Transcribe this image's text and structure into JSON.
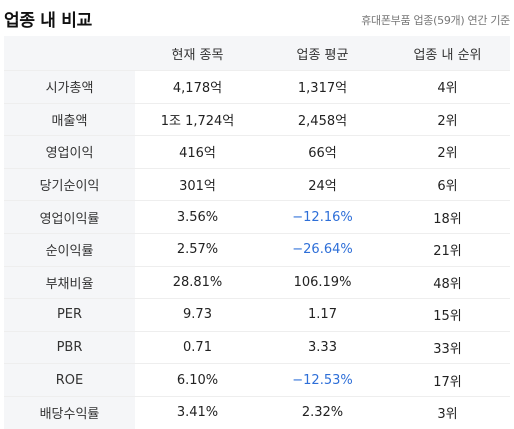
{
  "header": {
    "title": "업종 내 비교",
    "subtitle": "휴대폰부품 업종(59개) 연간 기준"
  },
  "table": {
    "columns": [
      "",
      "현재 종목",
      "업종 평균",
      "업종 내 순위"
    ],
    "rows": [
      {
        "label": "시가총액",
        "current": "4,178억",
        "avg": "1,317억",
        "rank": "4위",
        "avg_negative": false
      },
      {
        "label": "매출액",
        "current": "1조 1,724억",
        "avg": "2,458억",
        "rank": "2위",
        "avg_negative": false
      },
      {
        "label": "영업이익",
        "current": "416억",
        "avg": "66억",
        "rank": "2위",
        "avg_negative": false
      },
      {
        "label": "당기순이익",
        "current": "301억",
        "avg": "24억",
        "rank": "6위",
        "avg_negative": false
      },
      {
        "label": "영업이익률",
        "current": "3.56%",
        "avg": "−12.16%",
        "rank": "18위",
        "avg_negative": true
      },
      {
        "label": "순이익률",
        "current": "2.57%",
        "avg": "−26.64%",
        "rank": "21위",
        "avg_negative": true
      },
      {
        "label": "부채비율",
        "current": "28.81%",
        "avg": "106.19%",
        "rank": "48위",
        "avg_negative": false
      },
      {
        "label": "PER",
        "current": "9.73",
        "avg": "1.17",
        "rank": "15위",
        "avg_negative": false
      },
      {
        "label": "PBR",
        "current": "0.71",
        "avg": "3.33",
        "rank": "33위",
        "avg_negative": false
      },
      {
        "label": "ROE",
        "current": "6.10%",
        "avg": "−12.53%",
        "rank": "17위",
        "avg_negative": true
      },
      {
        "label": "배당수익률",
        "current": "3.41%",
        "avg": "2.32%",
        "rank": "3위",
        "avg_negative": false
      }
    ]
  },
  "colors": {
    "negative_text": "#2e6fd8",
    "header_bg": "#f5f6f8"
  }
}
